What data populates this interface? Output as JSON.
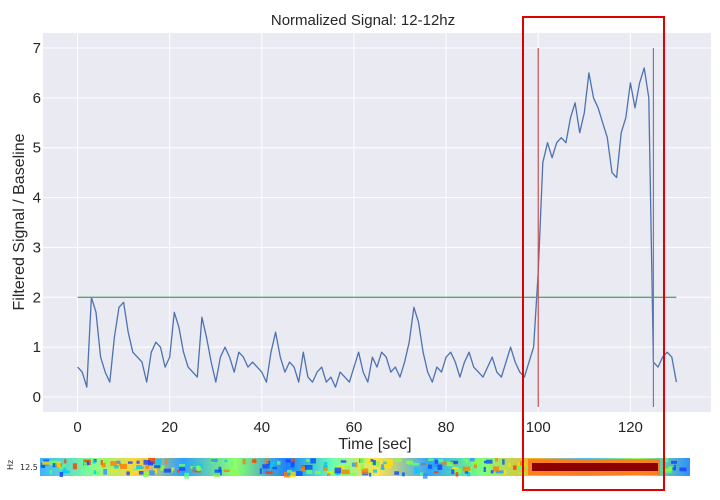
{
  "chart_data": {
    "type": "line",
    "title": "Normalized Signal: 12-12hz",
    "xlabel": "Time [sec]",
    "ylabel": "Filtered Signal / Baseline",
    "xlim": [
      -7.5,
      137.5
    ],
    "ylim": [
      -0.3,
      7.3
    ],
    "xticks": [
      0,
      20,
      40,
      60,
      80,
      100,
      120
    ],
    "yticks": [
      0,
      1,
      2,
      3,
      4,
      5,
      6,
      7
    ],
    "grid": true,
    "background": "#EAEAF2",
    "series": [
      {
        "color": "#4C72B0",
        "x": [
          0,
          1,
          2,
          3,
          4,
          5,
          6,
          7,
          8,
          9,
          10,
          11,
          12,
          13,
          14,
          15,
          16,
          17,
          18,
          19,
          20,
          21,
          22,
          23,
          24,
          25,
          26,
          27,
          28,
          29,
          30,
          31,
          32,
          33,
          34,
          35,
          36,
          37,
          38,
          39,
          40,
          41,
          42,
          43,
          44,
          45,
          46,
          47,
          48,
          49,
          50,
          51,
          52,
          53,
          54,
          55,
          56,
          57,
          58,
          59,
          60,
          61,
          62,
          63,
          64,
          65,
          66,
          67,
          68,
          69,
          70,
          71,
          72,
          73,
          74,
          75,
          76,
          77,
          78,
          79,
          80,
          81,
          82,
          83,
          84,
          85,
          86,
          87,
          88,
          89,
          90,
          91,
          92,
          93,
          94,
          95,
          96,
          97,
          98,
          99,
          100,
          101,
          102,
          103,
          104,
          105,
          106,
          107,
          108,
          109,
          110,
          111,
          112,
          113,
          114,
          115,
          116,
          117,
          118,
          119,
          120,
          121,
          122,
          123,
          124,
          125,
          126,
          127,
          128,
          129,
          130
        ],
        "y": [
          0.6,
          0.5,
          0.2,
          2.0,
          1.7,
          0.8,
          0.5,
          0.3,
          1.2,
          1.8,
          1.9,
          1.3,
          0.9,
          0.8,
          0.7,
          0.3,
          0.9,
          1.1,
          1.0,
          0.6,
          0.8,
          1.7,
          1.4,
          0.9,
          0.6,
          0.5,
          0.4,
          1.6,
          1.2,
          0.7,
          0.3,
          0.8,
          1.0,
          0.8,
          0.5,
          0.9,
          0.8,
          0.6,
          0.7,
          0.6,
          0.5,
          0.3,
          0.9,
          1.3,
          0.8,
          0.5,
          0.7,
          0.6,
          0.3,
          0.9,
          0.4,
          0.3,
          0.5,
          0.6,
          0.3,
          0.4,
          0.2,
          0.5,
          0.4,
          0.3,
          0.6,
          0.9,
          0.5,
          0.3,
          0.8,
          0.6,
          0.9,
          0.8,
          0.5,
          0.6,
          0.4,
          0.7,
          1.1,
          1.8,
          1.5,
          0.9,
          0.5,
          0.3,
          0.6,
          0.5,
          0.8,
          0.9,
          0.7,
          0.4,
          0.7,
          0.9,
          0.6,
          0.5,
          0.4,
          0.6,
          0.8,
          0.5,
          0.4,
          0.7,
          1.0,
          0.7,
          0.5,
          0.4,
          0.7,
          1.0,
          2.5,
          4.7,
          5.1,
          4.8,
          5.1,
          5.2,
          5.1,
          5.6,
          5.9,
          5.3,
          5.7,
          6.5,
          6.0,
          5.8,
          5.5,
          5.2,
          4.5,
          4.4,
          5.3,
          5.6,
          6.3,
          5.8,
          6.3,
          6.6,
          6.0,
          0.7,
          0.6,
          0.8,
          0.9,
          0.8,
          0.3
        ]
      },
      {
        "color": "#55A868",
        "x": [
          0,
          130
        ],
        "y": [
          2.0,
          2.0
        ]
      }
    ],
    "markers": [
      {
        "x": 100,
        "y": [
          -0.2,
          7.0
        ],
        "color": "#C44E52"
      },
      {
        "x": 125,
        "y": [
          -0.2,
          7.0
        ],
        "color": "#8172B2"
      }
    ],
    "spectrogram": {
      "label": "12.5",
      "unit": "Hz"
    },
    "highlight_color": "#E00000"
  }
}
